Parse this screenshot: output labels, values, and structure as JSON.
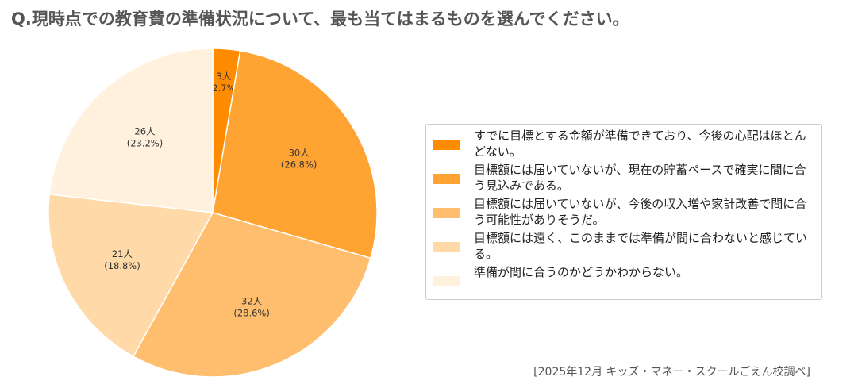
{
  "title": "Q.現時点での教育費の準備状況について、最も当てはまるものを選んでください。",
  "source": "[2025年12月 キッズ・マネー・スクールごえん校調べ]",
  "chart_data": {
    "type": "pie",
    "start_angle": "12 o'clock",
    "direction": "clockwise",
    "legend_position": "right",
    "slices": [
      {
        "label": "すでに目標とする金額が準備できており、今後の心配はほとんどない。",
        "count_label": "3人",
        "pct_label": "(2.7%)",
        "value": 3,
        "percent": 2.7,
        "color": "#FF8C00"
      },
      {
        "label": "目標額には届いていないが、現在の貯蓄ペースで確実に間に合う見込みである。",
        "count_label": "30人",
        "pct_label": "(26.8%)",
        "value": 30,
        "percent": 26.8,
        "color": "#FFA333"
      },
      {
        "label": "目標額には届いていないが、今後の収入増や家計改善で間に合う可能性がありそうだ。",
        "count_label": "32人",
        "pct_label": "(28.6%)",
        "value": 32,
        "percent": 28.6,
        "color": "#FFBE6E"
      },
      {
        "label": "目標額には遠く、このままでは準備が間に合わないと感じている。",
        "count_label": "21人",
        "pct_label": "(18.8%)",
        "value": 21,
        "percent": 18.8,
        "color": "#FFD9A8"
      },
      {
        "label": "準備が間に合うのかどうかわからない。",
        "count_label": "26人",
        "pct_label": "(23.2%)",
        "value": 26,
        "percent": 23.2,
        "color": "#FFF1DE"
      }
    ]
  }
}
